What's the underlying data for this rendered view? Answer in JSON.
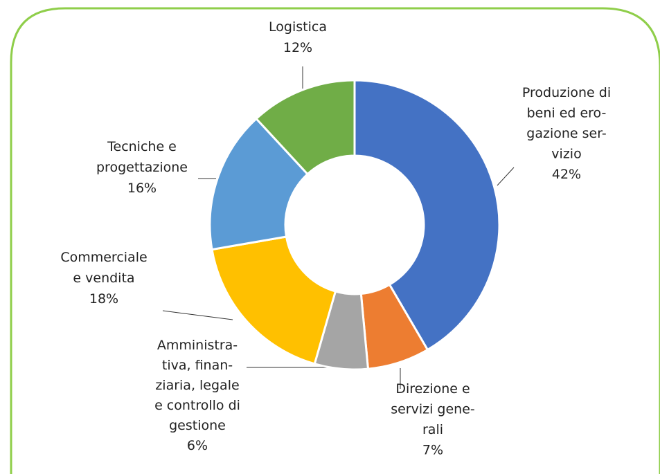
{
  "chart_data": {
    "type": "donut",
    "categories": [
      [
        "Produzione di",
        "beni ed ero-",
        "gazione ser-",
        "vizio"
      ],
      [
        "Direzione e",
        "servizi gene-",
        "rali"
      ],
      [
        "Amministra-",
        "tiva, finan-",
        "ziaria, legale",
        "e controllo di",
        "gestione"
      ],
      [
        "Commerciale",
        "e vendita"
      ],
      [
        "Tecniche e",
        "progettazione"
      ],
      [
        "Logistica"
      ]
    ],
    "values": [
      42,
      7,
      6,
      18,
      16,
      12
    ],
    "value_labels": [
      "42%",
      "7%",
      "6%",
      "18%",
      "16%",
      "12%"
    ],
    "colors": [
      "#4472c4",
      "#ed7d31",
      "#a5a5a5",
      "#ffc000",
      "#5b9bd5",
      "#70ad47"
    ]
  }
}
